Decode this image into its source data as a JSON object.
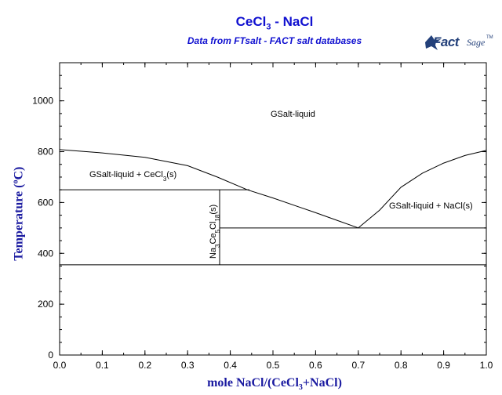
{
  "header": {
    "title_main": "CeCl",
    "title_sub": "3",
    "title_rest": " - NaCl",
    "subtitle": "Data from FTsalt - FACT salt databases"
  },
  "logo": {
    "fact": "Fact",
    "sage": "Sage",
    "tm": "TM"
  },
  "chart_data": {
    "type": "line",
    "xlabel_parts": [
      "mole NaCl/(CeCl",
      "3",
      "+NaCl)"
    ],
    "ylabel_parts": [
      "Temperature (",
      "o",
      "C)"
    ],
    "xlim": [
      0.0,
      1.0
    ],
    "ylim": [
      0,
      1150
    ],
    "x_ticks": [
      "0.0",
      "0.1",
      "0.2",
      "0.3",
      "0.4",
      "0.5",
      "0.6",
      "0.7",
      "0.8",
      "0.9",
      "1.0"
    ],
    "y_ticks": [
      "0",
      "200",
      "400",
      "600",
      "800",
      "1000"
    ],
    "y_tick_values": [
      0,
      200,
      400,
      600,
      800,
      1000
    ],
    "x_tick_values": [
      0.0,
      0.1,
      0.2,
      0.3,
      0.4,
      0.5,
      0.6,
      0.7,
      0.8,
      0.9,
      1.0
    ],
    "series": [
      {
        "points": [
          [
            0.0,
            808
          ],
          [
            0.1,
            795
          ],
          [
            0.2,
            778
          ],
          [
            0.3,
            745
          ],
          [
            0.37,
            700
          ],
          [
            0.44,
            650
          ],
          [
            0.5,
            618
          ],
          [
            0.6,
            560
          ],
          [
            0.65,
            530
          ],
          [
            0.7,
            500
          ]
        ]
      },
      {
        "points": [
          [
            0.7,
            500
          ],
          [
            0.75,
            570
          ],
          [
            0.8,
            660
          ],
          [
            0.85,
            715
          ],
          [
            0.9,
            755
          ],
          [
            0.95,
            785
          ],
          [
            1.0,
            805
          ]
        ]
      }
    ],
    "horizontal_lines": [
      {
        "x1": 0.0,
        "x2": 0.445,
        "y": 650
      },
      {
        "x1": 0.375,
        "x2": 1.0,
        "y": 500
      },
      {
        "x1": 0.0,
        "x2": 1.0,
        "y": 355
      }
    ],
    "vertical_lines": [
      {
        "x": 0.375,
        "y1": 355,
        "y2": 650
      }
    ],
    "region_labels": {
      "liquid": "GSalt-liquid",
      "liquid_cecl3_pre": "GSalt-liquid + CeCl",
      "liquid_cecl3_sub": "3",
      "liquid_cecl3_post": "(s)",
      "liquid_nacl": "GSalt-liquid + NaCl(s)",
      "compound_a": "Na",
      "compound_a_sub": "3",
      "compound_b": "Ce",
      "compound_b_sub": "5",
      "compound_c": "Cl",
      "compound_c_sub": "18",
      "compound_d": "(s)"
    }
  }
}
